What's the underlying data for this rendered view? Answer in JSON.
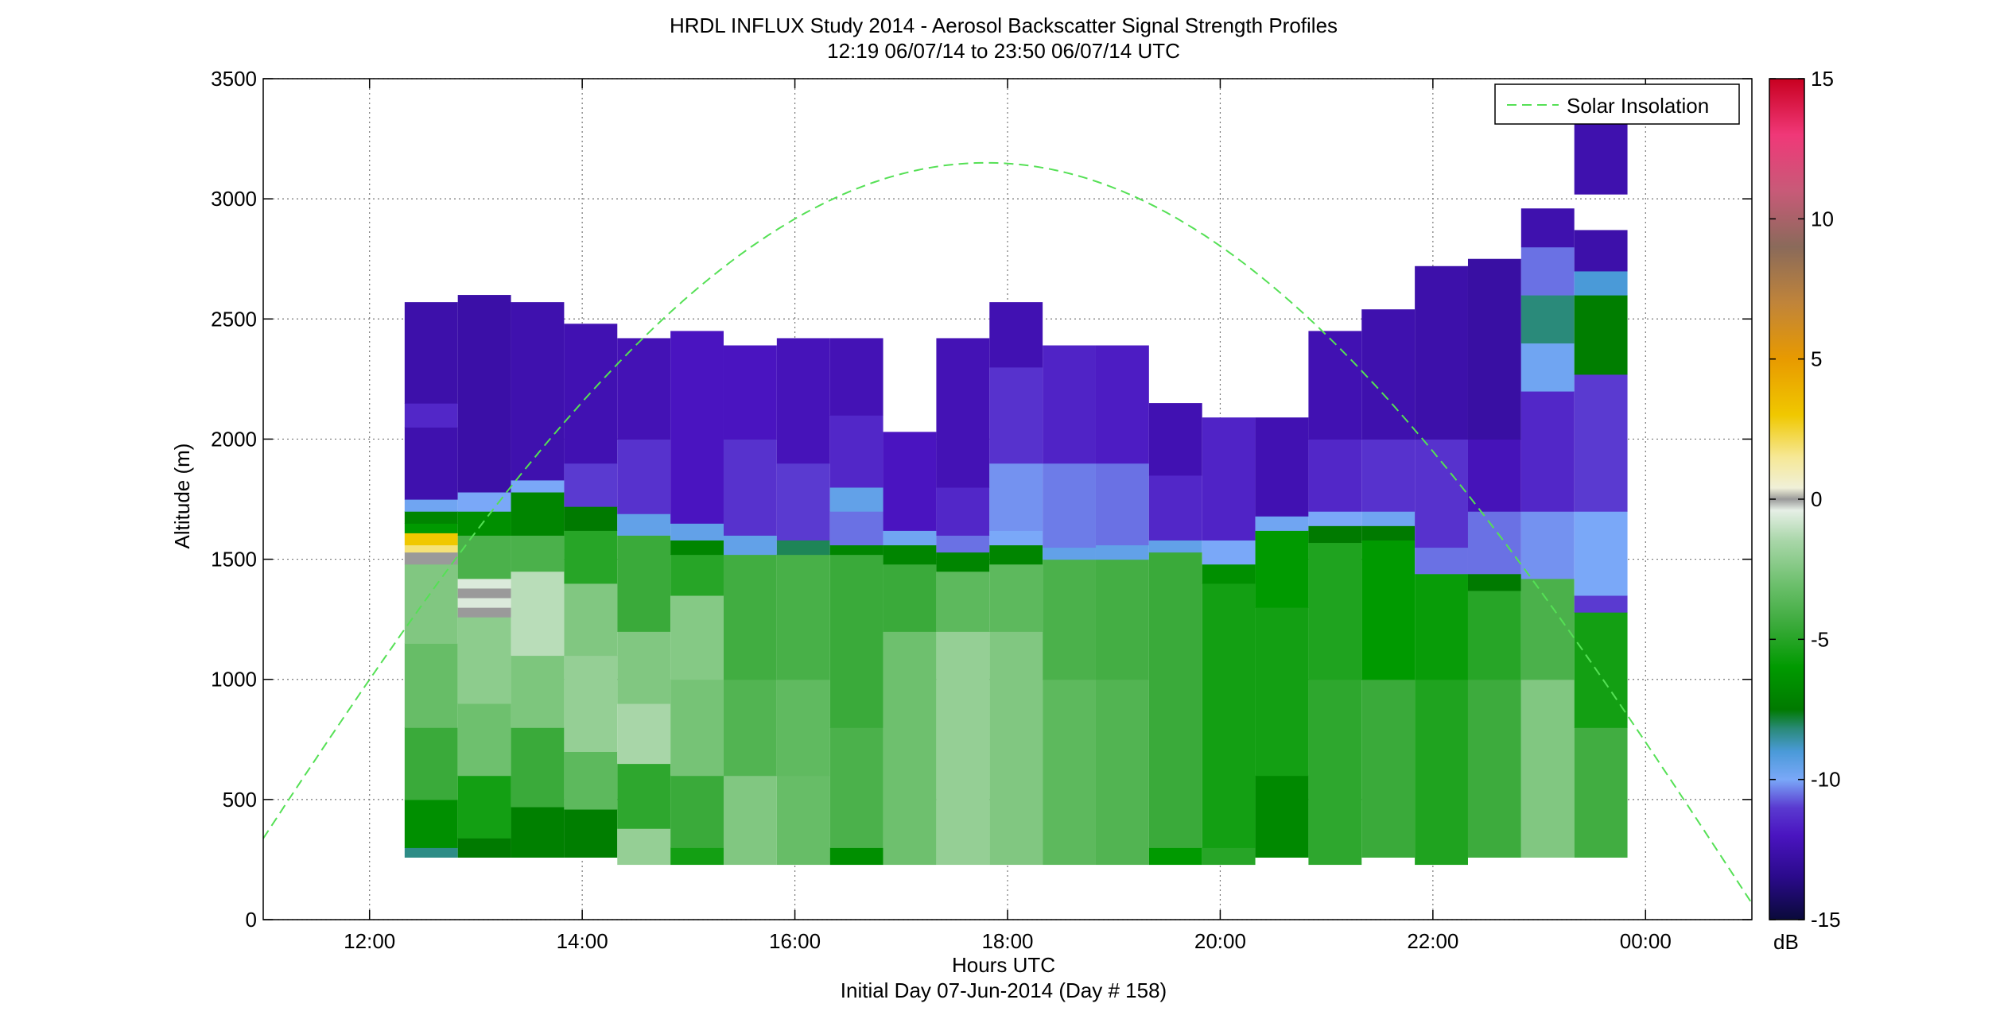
{
  "chart_data": {
    "type": "heatmap",
    "title": "HRDL INFLUX Study 2014 - Aerosol Backscatter Signal Strength Profiles",
    "subtitle": "12:19 06/07/14 to 23:50 06/07/14  UTC",
    "xlabel": "Hours UTC",
    "xlabel2": "Initial Day 07-Jun-2014 (Day # 158)",
    "ylabel": "Altitude (m)",
    "x_range_hours": [
      11.0,
      25.0
    ],
    "ylim": [
      0,
      3500
    ],
    "x_ticks": [
      {
        "h": 12,
        "label": "12:00"
      },
      {
        "h": 14,
        "label": "14:00"
      },
      {
        "h": 16,
        "label": "16:00"
      },
      {
        "h": 18,
        "label": "18:00"
      },
      {
        "h": 20,
        "label": "20:00"
      },
      {
        "h": 22,
        "label": "22:00"
      },
      {
        "h": 24,
        "label": "00:00"
      }
    ],
    "y_ticks": [
      0,
      500,
      1000,
      1500,
      2000,
      2500,
      3000,
      3500
    ],
    "grid": true,
    "legend": {
      "label": "Solar Insolation",
      "placement": "top-right",
      "color": "#55e055"
    },
    "colorbar": {
      "unit": "dB",
      "min": -15,
      "max": 15,
      "ticks": [
        -15,
        -10,
        -5,
        0,
        5,
        10,
        15
      ],
      "stops": [
        {
          "v": -15,
          "c": "#0a0a3a"
        },
        {
          "v": -13.5,
          "c": "#2a0a8a"
        },
        {
          "v": -12,
          "c": "#4a14c0"
        },
        {
          "v": -11,
          "c": "#5a3ad0"
        },
        {
          "v": -10,
          "c": "#7aa8f8"
        },
        {
          "v": -9,
          "c": "#4a9ad8"
        },
        {
          "v": -8.2,
          "c": "#2a8a7a"
        },
        {
          "v": -7.5,
          "c": "#007a00"
        },
        {
          "v": -6,
          "c": "#009a00"
        },
        {
          "v": -4.5,
          "c": "#3aaa3a"
        },
        {
          "v": -3,
          "c": "#6ec06e"
        },
        {
          "v": -1.5,
          "c": "#a8d6a8"
        },
        {
          "v": -0.4,
          "c": "#e6efe6"
        },
        {
          "v": 0,
          "c": "#9a9a9a"
        },
        {
          "v": 0.4,
          "c": "#f0f0d8"
        },
        {
          "v": 1.5,
          "c": "#f6e896"
        },
        {
          "v": 3,
          "c": "#f0c800"
        },
        {
          "v": 5,
          "c": "#e89a00"
        },
        {
          "v": 7,
          "c": "#c0843a"
        },
        {
          "v": 9,
          "c": "#8a6a5a"
        },
        {
          "v": 11,
          "c": "#c85a78"
        },
        {
          "v": 13,
          "c": "#f03878"
        },
        {
          "v": 15,
          "c": "#c80020"
        }
      ]
    },
    "solar_insolation": {
      "peak_hour": 17.8,
      "peak_altitude": 3150,
      "half_width_hours": 7.3
    },
    "profiles": [
      {
        "t0": 12.33,
        "t1": 12.83,
        "bottom": 260,
        "top": 2570,
        "segments": [
          {
            "to": 300,
            "v": -8.3
          },
          {
            "to": 500,
            "v": -6.5
          },
          {
            "to": 800,
            "v": -4.5
          },
          {
            "to": 1150,
            "v": -3.2
          },
          {
            "to": 1480,
            "v": -2.5
          },
          {
            "to": 1530,
            "v": 0
          },
          {
            "to": 1560,
            "v": 1.8
          },
          {
            "to": 1610,
            "v": 3
          },
          {
            "to": 1650,
            "v": -6
          },
          {
            "to": 1700,
            "v": -7
          },
          {
            "to": 1750,
            "v": -9.8
          },
          {
            "to": 2050,
            "v": -12.5
          },
          {
            "to": 2150,
            "v": -11.5
          },
          {
            "to": 2570,
            "v": -12.6
          }
        ]
      },
      {
        "t0": 12.83,
        "t1": 13.33,
        "bottom": 260,
        "top": 2600,
        "segments": [
          {
            "to": 340,
            "v": -7.5
          },
          {
            "to": 600,
            "v": -5.5
          },
          {
            "to": 900,
            "v": -3
          },
          {
            "to": 1260,
            "v": -2.2
          },
          {
            "to": 1300,
            "v": 0
          },
          {
            "to": 1340,
            "v": -0.6
          },
          {
            "to": 1380,
            "v": 0
          },
          {
            "to": 1420,
            "v": -0.6
          },
          {
            "to": 1600,
            "v": -4
          },
          {
            "to": 1700,
            "v": -6.5
          },
          {
            "to": 1780,
            "v": -10
          },
          {
            "to": 2600,
            "v": -12.7
          }
        ]
      },
      {
        "t0": 13.33,
        "t1": 13.83,
        "bottom": 260,
        "top": 2570,
        "segments": [
          {
            "to": 470,
            "v": -7.2
          },
          {
            "to": 800,
            "v": -4.5
          },
          {
            "to": 1100,
            "v": -2.6
          },
          {
            "to": 1450,
            "v": -1.2
          },
          {
            "to": 1600,
            "v": -4
          },
          {
            "to": 1780,
            "v": -7
          },
          {
            "to": 1830,
            "v": -10
          },
          {
            "to": 2570,
            "v": -12.5
          }
        ]
      },
      {
        "t0": 13.83,
        "t1": 14.33,
        "bottom": 260,
        "top": 2480,
        "segments": [
          {
            "to": 460,
            "v": -7.3
          },
          {
            "to": 700,
            "v": -3.5
          },
          {
            "to": 1100,
            "v": -2
          },
          {
            "to": 1400,
            "v": -2.5
          },
          {
            "to": 1620,
            "v": -5
          },
          {
            "to": 1720,
            "v": -7.5
          },
          {
            "to": 1900,
            "v": -11
          },
          {
            "to": 2480,
            "v": -12.4
          }
        ]
      },
      {
        "t0": 14.33,
        "t1": 14.83,
        "bottom": 230,
        "top": 2420,
        "segments": [
          {
            "to": 380,
            "v": -2
          },
          {
            "to": 650,
            "v": -4.8
          },
          {
            "to": 900,
            "v": -1.5
          },
          {
            "to": 1200,
            "v": -2.5
          },
          {
            "to": 1600,
            "v": -4.5
          },
          {
            "to": 1690,
            "v": -9.5
          },
          {
            "to": 2000,
            "v": -11.2
          },
          {
            "to": 2420,
            "v": -12.3
          }
        ]
      },
      {
        "t0": 14.83,
        "t1": 15.33,
        "bottom": 230,
        "top": 2450,
        "segments": [
          {
            "to": 300,
            "v": -5.5
          },
          {
            "to": 600,
            "v": -4.5
          },
          {
            "to": 1000,
            "v": -2.8
          },
          {
            "to": 1350,
            "v": -2.4
          },
          {
            "to": 1520,
            "v": -5
          },
          {
            "to": 1580,
            "v": -7
          },
          {
            "to": 1650,
            "v": -9.5
          },
          {
            "to": 2450,
            "v": -12
          }
        ]
      },
      {
        "t0": 15.33,
        "t1": 15.83,
        "bottom": 230,
        "top": 2390,
        "segments": [
          {
            "to": 600,
            "v": -2.5
          },
          {
            "to": 1000,
            "v": -3.8
          },
          {
            "to": 1520,
            "v": -4.3
          },
          {
            "to": 1600,
            "v": -9.5
          },
          {
            "to": 2000,
            "v": -11.2
          },
          {
            "to": 2390,
            "v": -12
          }
        ]
      },
      {
        "t0": 15.83,
        "t1": 16.33,
        "bottom": 230,
        "top": 2420,
        "segments": [
          {
            "to": 600,
            "v": -3.2
          },
          {
            "to": 1000,
            "v": -3.4
          },
          {
            "to": 1520,
            "v": -4.1
          },
          {
            "to": 1580,
            "v": -8
          },
          {
            "to": 1900,
            "v": -11
          },
          {
            "to": 2420,
            "v": -12.2
          }
        ]
      },
      {
        "t0": 16.33,
        "t1": 16.83,
        "bottom": 230,
        "top": 2420,
        "segments": [
          {
            "to": 300,
            "v": -6.5
          },
          {
            "to": 800,
            "v": -4
          },
          {
            "to": 1520,
            "v": -4.5
          },
          {
            "to": 1560,
            "v": -7
          },
          {
            "to": 1700,
            "v": -10.5
          },
          {
            "to": 1800,
            "v": -9.5
          },
          {
            "to": 2100,
            "v": -11.5
          },
          {
            "to": 2420,
            "v": -12.3
          }
        ]
      },
      {
        "t0": 16.83,
        "t1": 17.33,
        "bottom": 230,
        "top": 2030,
        "segments": [
          {
            "to": 1200,
            "v": -3
          },
          {
            "to": 1480,
            "v": -4.5
          },
          {
            "to": 1560,
            "v": -7
          },
          {
            "to": 1620,
            "v": -9.8
          },
          {
            "to": 2030,
            "v": -12
          }
        ]
      },
      {
        "t0": 17.33,
        "t1": 17.83,
        "bottom": 230,
        "top": 2420,
        "segments": [
          {
            "to": 1200,
            "v": -2
          },
          {
            "to": 1450,
            "v": -3.5
          },
          {
            "to": 1530,
            "v": -7
          },
          {
            "to": 1600,
            "v": -10.5
          },
          {
            "to": 1800,
            "v": -11.5
          },
          {
            "to": 2420,
            "v": -12.3
          }
        ]
      },
      {
        "t0": 17.83,
        "t1": 18.33,
        "bottom": 230,
        "top": 2570,
        "segments": [
          {
            "to": 1200,
            "v": -2.5
          },
          {
            "to": 1480,
            "v": -3.5
          },
          {
            "to": 1560,
            "v": -7
          },
          {
            "to": 1620,
            "v": -10
          },
          {
            "to": 1900,
            "v": -10.2
          },
          {
            "to": 2300,
            "v": -11.2
          },
          {
            "to": 2570,
            "v": -12.4
          }
        ]
      },
      {
        "t0": 18.33,
        "t1": 18.83,
        "bottom": 230,
        "top": 2390,
        "segments": [
          {
            "to": 1000,
            "v": -3.5
          },
          {
            "to": 1500,
            "v": -4
          },
          {
            "to": 1550,
            "v": -9.5
          },
          {
            "to": 1900,
            "v": -10.4
          },
          {
            "to": 2390,
            "v": -11.6
          }
        ]
      },
      {
        "t0": 18.83,
        "t1": 19.33,
        "bottom": 230,
        "top": 2390,
        "segments": [
          {
            "to": 1000,
            "v": -3.8
          },
          {
            "to": 1500,
            "v": -4.2
          },
          {
            "to": 1560,
            "v": -9.5
          },
          {
            "to": 1900,
            "v": -10.5
          },
          {
            "to": 2390,
            "v": -11.8
          }
        ]
      },
      {
        "t0": 19.33,
        "t1": 19.83,
        "bottom": 230,
        "top": 2150,
        "segments": [
          {
            "to": 300,
            "v": -6
          },
          {
            "to": 1530,
            "v": -4.5
          },
          {
            "to": 1580,
            "v": -9.5
          },
          {
            "to": 1850,
            "v": -11.5
          },
          {
            "to": 2150,
            "v": -12.4
          }
        ]
      },
      {
        "t0": 19.83,
        "t1": 20.33,
        "bottom": 230,
        "top": 2090,
        "segments": [
          {
            "to": 300,
            "v": -5
          },
          {
            "to": 1400,
            "v": -5.5
          },
          {
            "to": 1480,
            "v": -6.5
          },
          {
            "to": 1580,
            "v": -10
          },
          {
            "to": 2090,
            "v": -11.6
          }
        ]
      },
      {
        "t0": 20.33,
        "t1": 20.83,
        "bottom": 260,
        "top": 2090,
        "segments": [
          {
            "to": 600,
            "v": -6.8
          },
          {
            "to": 1300,
            "v": -5.5
          },
          {
            "to": 1620,
            "v": -6
          },
          {
            "to": 1680,
            "v": -9.8
          },
          {
            "to": 2090,
            "v": -12.4
          }
        ]
      },
      {
        "t0": 20.83,
        "t1": 21.33,
        "bottom": 230,
        "top": 2450,
        "segments": [
          {
            "to": 1000,
            "v": -4.8
          },
          {
            "to": 1570,
            "v": -5.2
          },
          {
            "to": 1640,
            "v": -7.5
          },
          {
            "to": 1700,
            "v": -10
          },
          {
            "to": 2000,
            "v": -11.5
          },
          {
            "to": 2450,
            "v": -12.4
          }
        ]
      },
      {
        "t0": 21.33,
        "t1": 21.83,
        "bottom": 260,
        "top": 2540,
        "segments": [
          {
            "to": 1000,
            "v": -4.5
          },
          {
            "to": 1580,
            "v": -6
          },
          {
            "to": 1640,
            "v": -7.5
          },
          {
            "to": 1700,
            "v": -9.8
          },
          {
            "to": 2000,
            "v": -11.2
          },
          {
            "to": 2540,
            "v": -12.5
          }
        ]
      },
      {
        "t0": 21.83,
        "t1": 22.33,
        "bottom": 230,
        "top": 2720,
        "segments": [
          {
            "to": 1000,
            "v": -5.2
          },
          {
            "to": 1440,
            "v": -5.8
          },
          {
            "to": 1550,
            "v": -10.5
          },
          {
            "to": 2000,
            "v": -11.2
          },
          {
            "to": 2720,
            "v": -12.6
          }
        ]
      },
      {
        "t0": 22.33,
        "t1": 22.83,
        "bottom": 260,
        "top": 2750,
        "segments": [
          {
            "to": 1000,
            "v": -4.4
          },
          {
            "to": 1370,
            "v": -5
          },
          {
            "to": 1440,
            "v": -7.5
          },
          {
            "to": 1700,
            "v": -10.5
          },
          {
            "to": 2000,
            "v": -12.2
          },
          {
            "to": 2750,
            "v": -12.8
          }
        ]
      },
      {
        "t0": 22.83,
        "t1": 23.33,
        "bottom": 260,
        "top": 2960,
        "segments": [
          {
            "to": 1000,
            "v": -2.5
          },
          {
            "to": 1420,
            "v": -4
          },
          {
            "to": 1700,
            "v": -10.2
          },
          {
            "to": 2200,
            "v": -11.5
          },
          {
            "to": 2400,
            "v": -9.8
          },
          {
            "to": 2600,
            "v": -8.2
          },
          {
            "to": 2800,
            "v": -10.5
          },
          {
            "to": 2960,
            "v": -12.5
          }
        ]
      },
      {
        "t0": 23.33,
        "t1": 23.83,
        "bottom": 260,
        "top": 2870,
        "segments": [
          {
            "to": 800,
            "v": -4.3
          },
          {
            "to": 1280,
            "v": -5.5
          },
          {
            "to": 1350,
            "v": -11
          },
          {
            "to": 1700,
            "v": -10
          },
          {
            "to": 2270,
            "v": -11
          },
          {
            "to": 2600,
            "v": -7.3
          },
          {
            "to": 2700,
            "v": -9
          },
          {
            "to": 2870,
            "v": -12.6
          }
        ]
      },
      {
        "t0": 23.33,
        "t1": 23.83,
        "bottom": 3020,
        "top": 3320,
        "segments": [
          {
            "to": 3320,
            "v": -12.5
          }
        ]
      }
    ]
  }
}
